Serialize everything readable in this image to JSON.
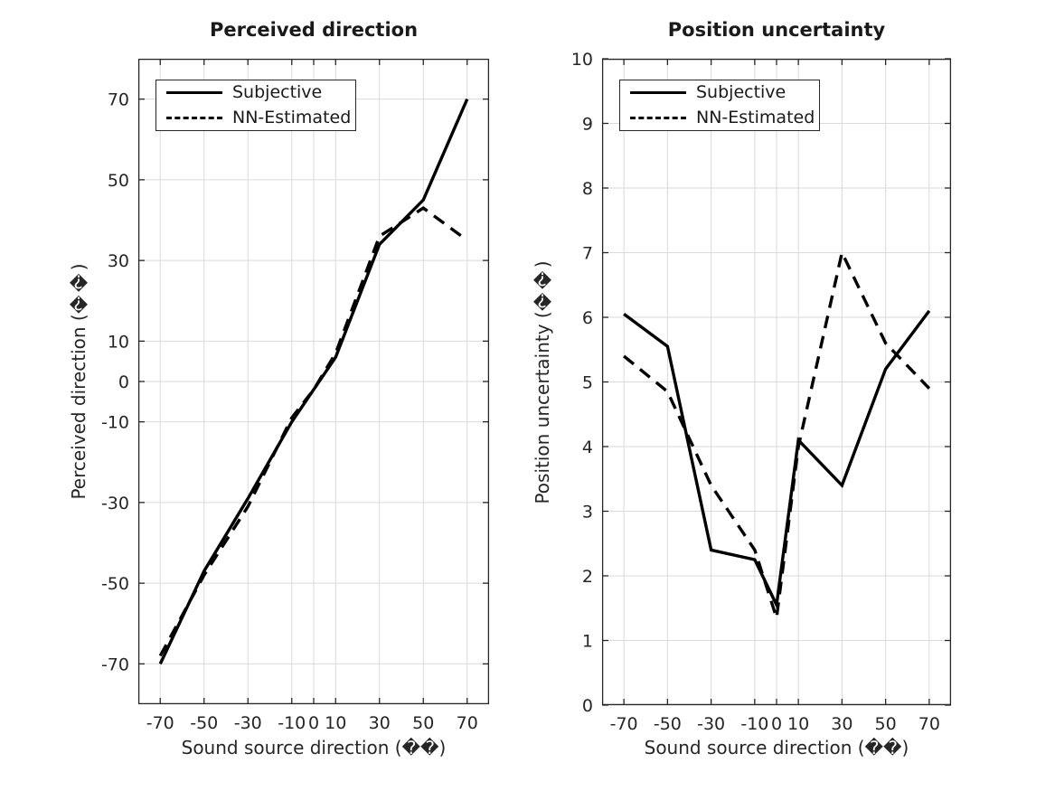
{
  "figure": {
    "background": "#ffffff",
    "text_color": "#262626",
    "line_color": "#000000",
    "grid_color": "#dadada",
    "axis_color": "#262626"
  },
  "chart_data": [
    {
      "type": "line",
      "title": "Perceived direction",
      "xlabel": "Sound source direction (��)",
      "ylabel": "Perceived direction (��)",
      "xlim": [
        -80,
        80
      ],
      "ylim": [
        -80,
        80
      ],
      "xticks": [
        -70,
        -50,
        -30,
        -10,
        0,
        10,
        30,
        50,
        70
      ],
      "yticks": [
        -70,
        -50,
        -30,
        -10,
        0,
        10,
        30,
        50,
        70
      ],
      "grid": true,
      "legend_position": "top-left",
      "x": [
        -70,
        -50,
        -30,
        -10,
        0,
        10,
        30,
        50,
        70
      ],
      "series": [
        {
          "name": "Subjective",
          "style": "solid",
          "values": [
            -70,
            -47,
            -29,
            -10,
            -2,
            6,
            34,
            45,
            70
          ]
        },
        {
          "name": "NN-Estimated",
          "style": "dashed",
          "values": [
            -68,
            -48,
            -31,
            -9,
            -2,
            7,
            36,
            43,
            35
          ]
        }
      ]
    },
    {
      "type": "line",
      "title": "Position uncertainty",
      "xlabel": "Sound source direction (��)",
      "ylabel": "Position uncertainty (��)",
      "xlim": [
        -80,
        80
      ],
      "ylim": [
        0,
        10
      ],
      "xticks": [
        -70,
        -50,
        -30,
        -10,
        0,
        10,
        30,
        50,
        70
      ],
      "yticks": [
        0,
        1,
        2,
        3,
        4,
        5,
        6,
        7,
        8,
        9,
        10
      ],
      "grid": true,
      "legend_position": "top-left",
      "x": [
        -70,
        -50,
        -30,
        -10,
        0,
        10,
        30,
        50,
        70
      ],
      "series": [
        {
          "name": "Subjective",
          "style": "solid",
          "values": [
            6.05,
            5.55,
            2.4,
            2.25,
            1.55,
            4.1,
            3.4,
            5.2,
            6.1
          ]
        },
        {
          "name": "NN-Estimated",
          "style": "dashed",
          "values": [
            5.4,
            4.85,
            3.4,
            2.4,
            1.35,
            4.0,
            7.0,
            5.6,
            4.9
          ]
        }
      ]
    }
  ]
}
